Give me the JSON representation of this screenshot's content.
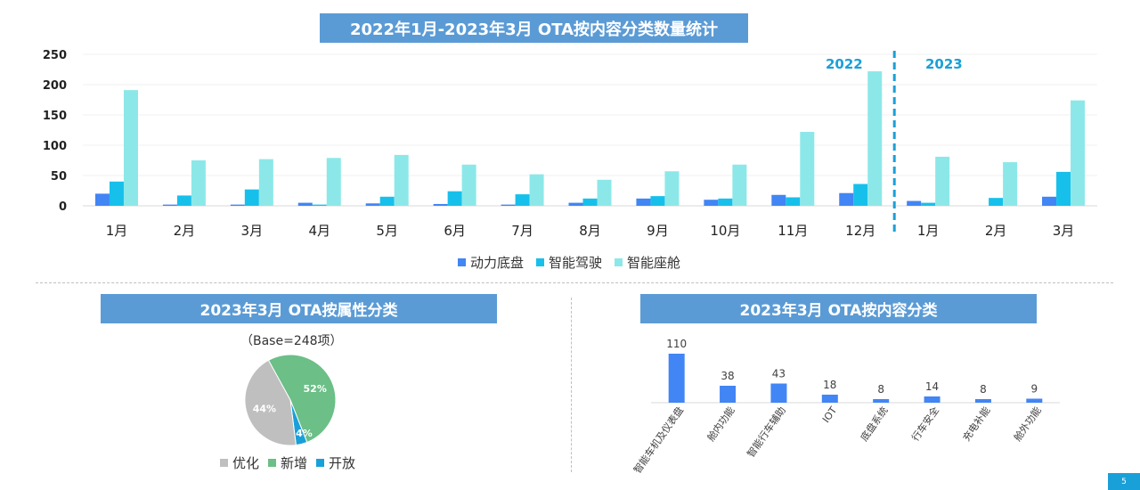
{
  "main_chart": {
    "title": "2022年1月-2023年3月 OTA按内容分类数量统计",
    "year_labels": [
      "2022",
      "2023"
    ]
  },
  "attr_chart": {
    "title": "2023年3月 OTA按属性分类",
    "base_note": "（Base=248项）"
  },
  "content_chart": {
    "title": "2023年3月 OTA按内容分类"
  },
  "page_number": "5",
  "colors": {
    "title_bg": "#5b9bd5",
    "power_chassis": "#4285f4",
    "smart_driving": "#17c0eb",
    "smart_cockpit": "#8ce8e8",
    "optimize": "#bfbfbf",
    "new_add": "#6bbf87",
    "open": "#1aa0d8",
    "year_label": "#1aa0d8"
  },
  "chart_data": [
    {
      "type": "bar",
      "categories": [
        "1月",
        "2月",
        "3月",
        "4月",
        "5月",
        "6月",
        "7月",
        "8月",
        "9月",
        "10月",
        "11月",
        "12月",
        "1月",
        "2月",
        "3月"
      ],
      "series": [
        {
          "name": "动力底盘",
          "values": [
            20,
            2,
            2,
            5,
            4,
            3,
            2,
            5,
            12,
            10,
            18,
            21,
            8,
            0,
            15
          ]
        },
        {
          "name": "智能驾驶",
          "values": [
            40,
            17,
            27,
            2,
            15,
            24,
            19,
            12,
            16,
            12,
            14,
            36,
            5,
            13,
            56
          ]
        },
        {
          "name": "智能座舱",
          "values": [
            191,
            75,
            77,
            79,
            84,
            68,
            52,
            43,
            57,
            68,
            122,
            222,
            81,
            72,
            174
          ]
        }
      ],
      "yticks": [
        "0",
        "50",
        "100",
        "150",
        "200",
        "250"
      ],
      "ylim": [
        0,
        250
      ],
      "grid": true,
      "legend": "bottom",
      "annotations": [
        "2022",
        "2023"
      ]
    },
    {
      "type": "pie",
      "slices": [
        {
          "name": "优化",
          "value": 44,
          "label": "44%"
        },
        {
          "name": "新增",
          "value": 52,
          "label": "52%"
        },
        {
          "name": "开放",
          "value": 4,
          "label": "4%"
        }
      ],
      "legend": "bottom"
    },
    {
      "type": "bar",
      "categories": [
        "智能车机及仪表盘",
        "舱内功能",
        "智能行车辅助",
        "IOT",
        "底盘系统",
        "行车安全",
        "充电补能",
        "舱外功能"
      ],
      "values": [
        110,
        38,
        43,
        18,
        8,
        14,
        8,
        9
      ],
      "data_labels": [
        "110",
        "38",
        "43",
        "18",
        "8",
        "14",
        "8",
        "9"
      ]
    }
  ]
}
